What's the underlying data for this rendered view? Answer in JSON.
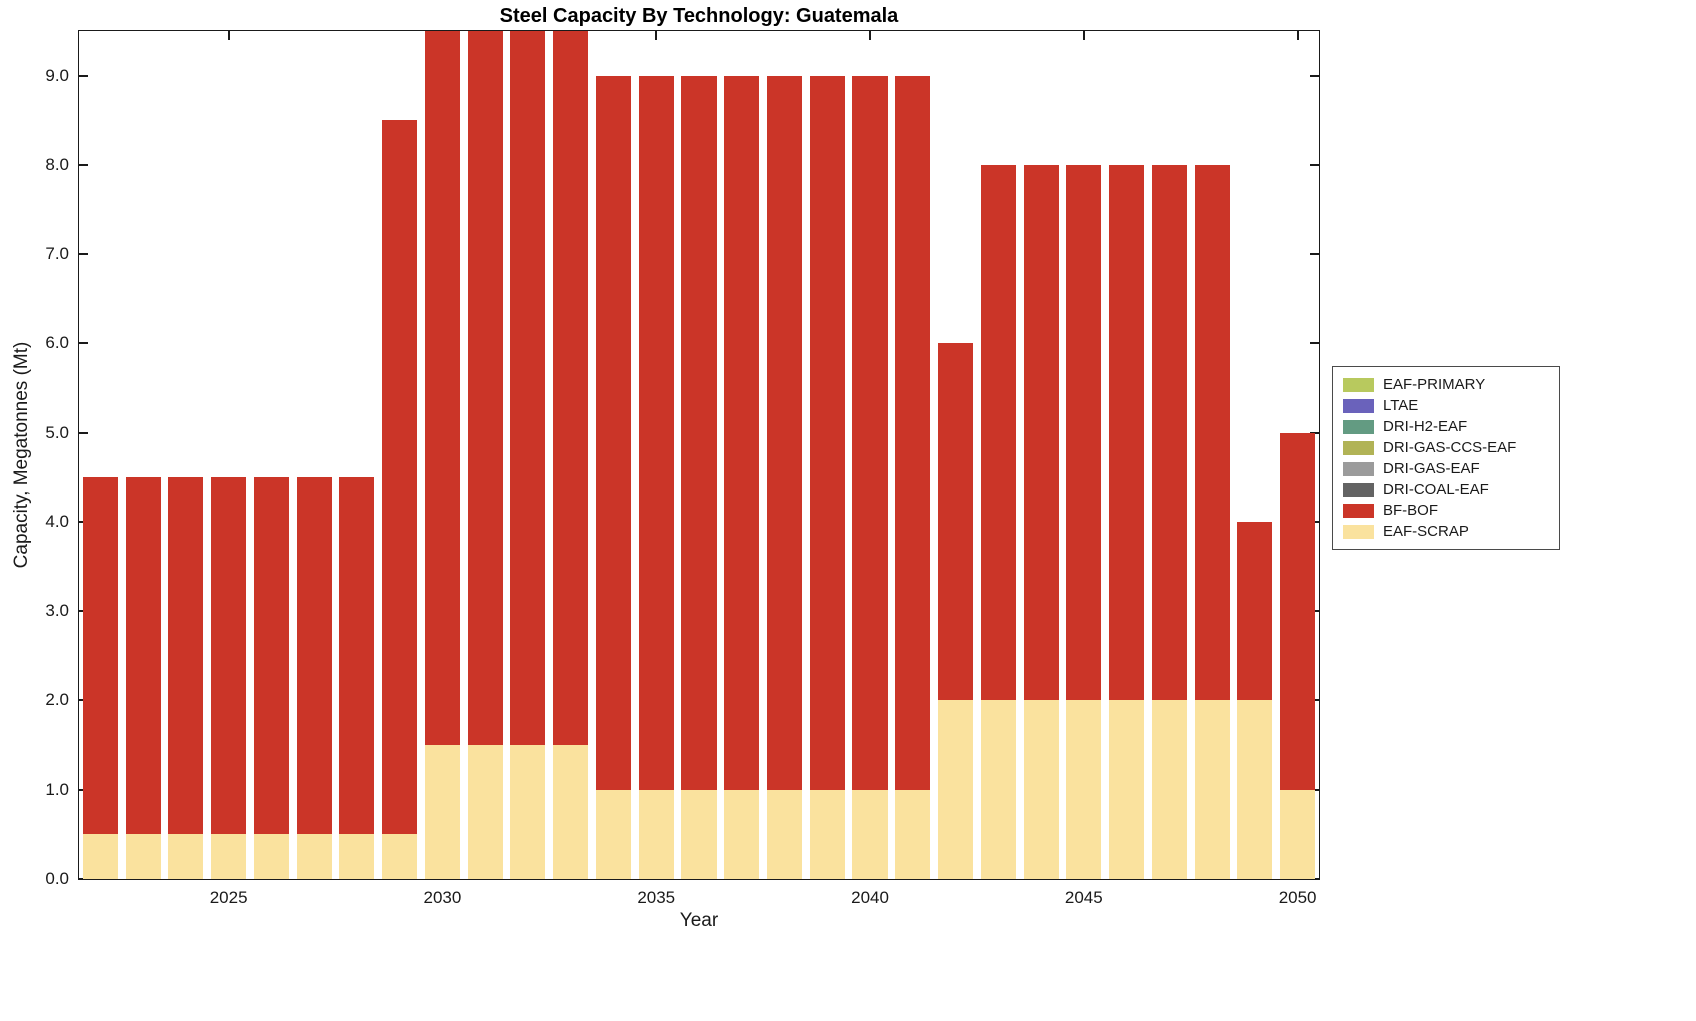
{
  "chart_data": {
    "type": "bar",
    "stacked": true,
    "title": "Steel Capacity By Technology: Guatemala",
    "xlabel": "Year",
    "ylabel": "Capacity, Megatonnes (Mt)",
    "x": [
      2022,
      2023,
      2024,
      2025,
      2026,
      2027,
      2028,
      2029,
      2030,
      2031,
      2032,
      2033,
      2034,
      2035,
      2036,
      2037,
      2038,
      2039,
      2040,
      2041,
      2042,
      2043,
      2044,
      2045,
      2046,
      2047,
      2048,
      2049,
      2050
    ],
    "xticks": [
      2025,
      2030,
      2035,
      2040,
      2045,
      2050
    ],
    "yticks": [
      0,
      1,
      2,
      3,
      4,
      5,
      6,
      7,
      8,
      9
    ],
    "ylim": [
      0,
      9.5
    ],
    "grid": false,
    "legend_position": "right-outside",
    "series": [
      {
        "name": "EAF-SCRAP",
        "color": "#fae29e",
        "values": [
          0.5,
          0.5,
          0.5,
          0.5,
          0.5,
          0.5,
          0.5,
          0.5,
          1.5,
          1.5,
          1.5,
          1.5,
          1,
          1,
          1,
          1,
          1,
          1,
          1,
          1,
          2,
          2,
          2,
          2,
          2,
          2,
          2,
          2,
          1
        ]
      },
      {
        "name": "BF-BOF",
        "color": "#cb3528",
        "values": [
          4,
          4,
          4,
          4,
          4,
          4,
          4,
          8,
          8,
          8,
          8,
          8,
          8,
          8,
          8,
          8,
          8,
          8,
          8,
          8,
          4,
          6,
          6,
          6,
          6,
          6,
          6,
          2,
          4
        ]
      }
    ],
    "legend": [
      {
        "label": "EAF-PRIMARY",
        "color": "#b8c95e"
      },
      {
        "label": "LTAE",
        "color": "#6a62bb"
      },
      {
        "label": "DRI-H2-EAF",
        "color": "#639b82"
      },
      {
        "label": "DRI-GAS-CCS-EAF",
        "color": "#b1b356"
      },
      {
        "label": "DRI-GAS-EAF",
        "color": "#9b9b9b"
      },
      {
        "label": "DRI-COAL-EAF",
        "color": "#636363"
      },
      {
        "label": "BF-BOF",
        "color": "#cb3528"
      },
      {
        "label": "EAF-SCRAP",
        "color": "#fae29e"
      }
    ]
  }
}
